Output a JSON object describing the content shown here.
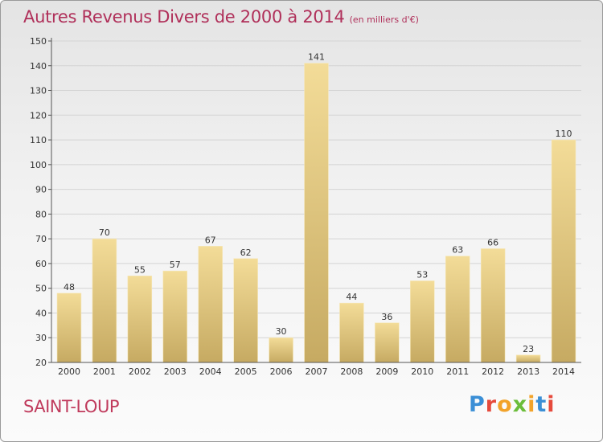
{
  "header": {
    "title": "Autres Revenus Divers de 2000 à 2014",
    "subtitle": "(en milliers d'€)"
  },
  "footer": {
    "place": "SAINT-LOUP",
    "brand": "Proxiti"
  },
  "colors": {
    "title": "#b0305a",
    "bar_light": "#f3dc98",
    "bar_dark": "#c6aa62",
    "brand_letters": [
      "#3b8fd6",
      "#e64a3c",
      "#f2a32a",
      "#6bbd3a",
      "#f2a32a",
      "#3b8fd6",
      "#e64a3c"
    ]
  },
  "chart_data": {
    "type": "bar",
    "categories": [
      "2000",
      "2001",
      "2002",
      "2003",
      "2004",
      "2005",
      "2006",
      "2007",
      "2008",
      "2009",
      "2010",
      "2011",
      "2012",
      "2013",
      "2014"
    ],
    "values": [
      48,
      70,
      55,
      57,
      67,
      62,
      30,
      141,
      44,
      36,
      53,
      63,
      66,
      23,
      110
    ],
    "ylim": [
      20,
      150
    ],
    "yticks": [
      20,
      30,
      40,
      50,
      60,
      70,
      80,
      90,
      100,
      110,
      120,
      130,
      140,
      150
    ],
    "grid": true,
    "data_labels": true
  }
}
